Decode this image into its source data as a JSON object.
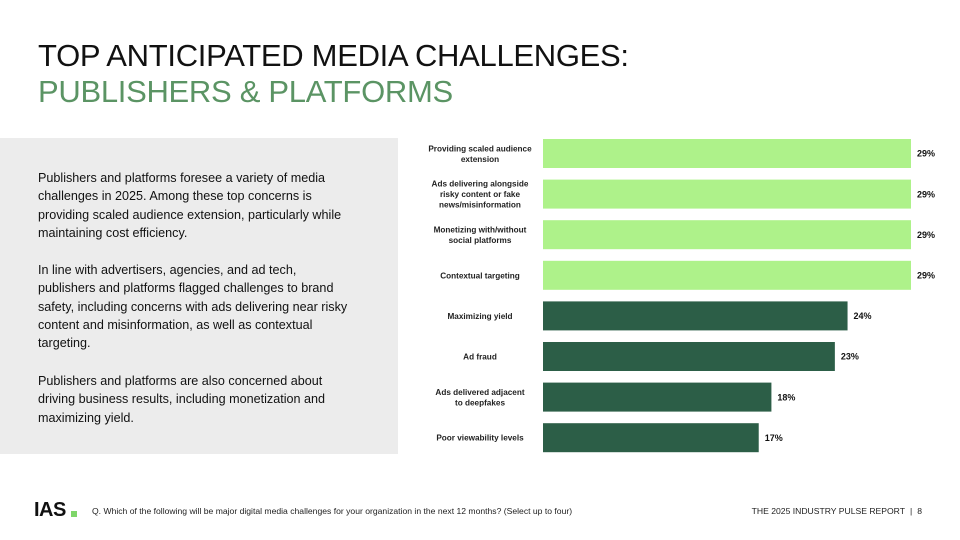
{
  "title": {
    "line1": "TOP ANTICIPATED MEDIA CHALLENGES:",
    "line2": "PUBLISHERS & PLATFORMS",
    "accent_color": "#5b9464"
  },
  "body": {
    "paragraphs": [
      "Publishers and platforms foresee a variety of media challenges in 2025. Among these top concerns is providing scaled audience extension, particularly while maintaining cost efficiency.",
      "In line with advertisers, agencies, and ad tech, publishers and platforms flagged challenges to brand safety, including concerns with ads delivering near risky content and misinformation, as well as contextual targeting.",
      "Publishers and platforms are also concerned about driving business results, including monetization and maximizing yield."
    ]
  },
  "chart_data": {
    "type": "bar",
    "orientation": "horizontal",
    "categories": [
      [
        "Providing scaled audience",
        "extension"
      ],
      [
        "Ads delivering alongside",
        "risky content or fake",
        "news/misinformation"
      ],
      [
        "Monetizing with/without",
        "social platforms"
      ],
      [
        "Contextual targeting"
      ],
      [
        "Maximizing yield"
      ],
      [
        "Ad fraud"
      ],
      [
        "Ads delivered adjacent",
        "to deepfakes"
      ],
      [
        "Poor viewability levels"
      ]
    ],
    "values": [
      29,
      29,
      29,
      29,
      24,
      23,
      18,
      17
    ],
    "value_labels": [
      "29%",
      "29%",
      "29%",
      "29%",
      "24%",
      "23%",
      "18%",
      "17%"
    ],
    "bar_colors": [
      "#aef28a",
      "#aef28a",
      "#aef28a",
      "#aef28a",
      "#2c5e47",
      "#2c5e47",
      "#2c5e47",
      "#2c5e47"
    ],
    "xlim": [
      0,
      29
    ],
    "grid": false,
    "legend": "none"
  },
  "footer": {
    "logo": "IAS",
    "question": "Q. Which of the following will be major digital media challenges for your organization in the next 12 months? (Select up to four)",
    "report_name": "THE 2025 INDUSTRY PULSE REPORT",
    "separator": "|",
    "page_number": "8"
  }
}
